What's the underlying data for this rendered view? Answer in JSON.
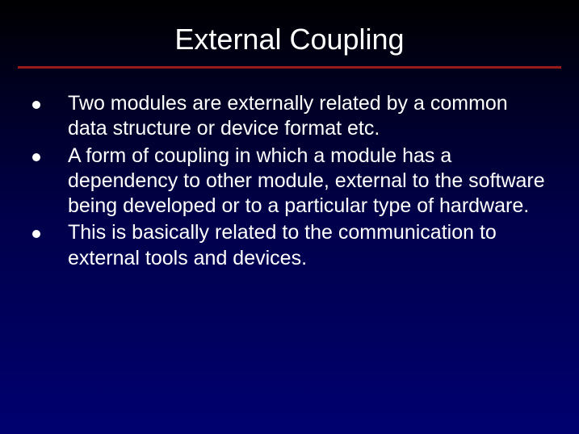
{
  "slide": {
    "title": "External Coupling",
    "title_fontsize": 36,
    "title_color": "#ffffff",
    "divider_color": "#9a1a1a",
    "divider_height": 3,
    "background_gradient": [
      "#000000",
      "#000020",
      "#00004a",
      "#000070"
    ],
    "bullet_marker_color": "#ffffff",
    "bullet_marker_size": 10,
    "body_fontsize": 25,
    "body_color": "#ffffff",
    "bullets": [
      {
        "text": "Two modules are externally related by a common data structure or device format etc."
      },
      {
        "text": "A form of coupling in which a module has a dependency to other module, external to the software being developed or to a particular type of hardware."
      },
      {
        "text": "This is basically related to the communication to external tools and devices."
      }
    ]
  }
}
